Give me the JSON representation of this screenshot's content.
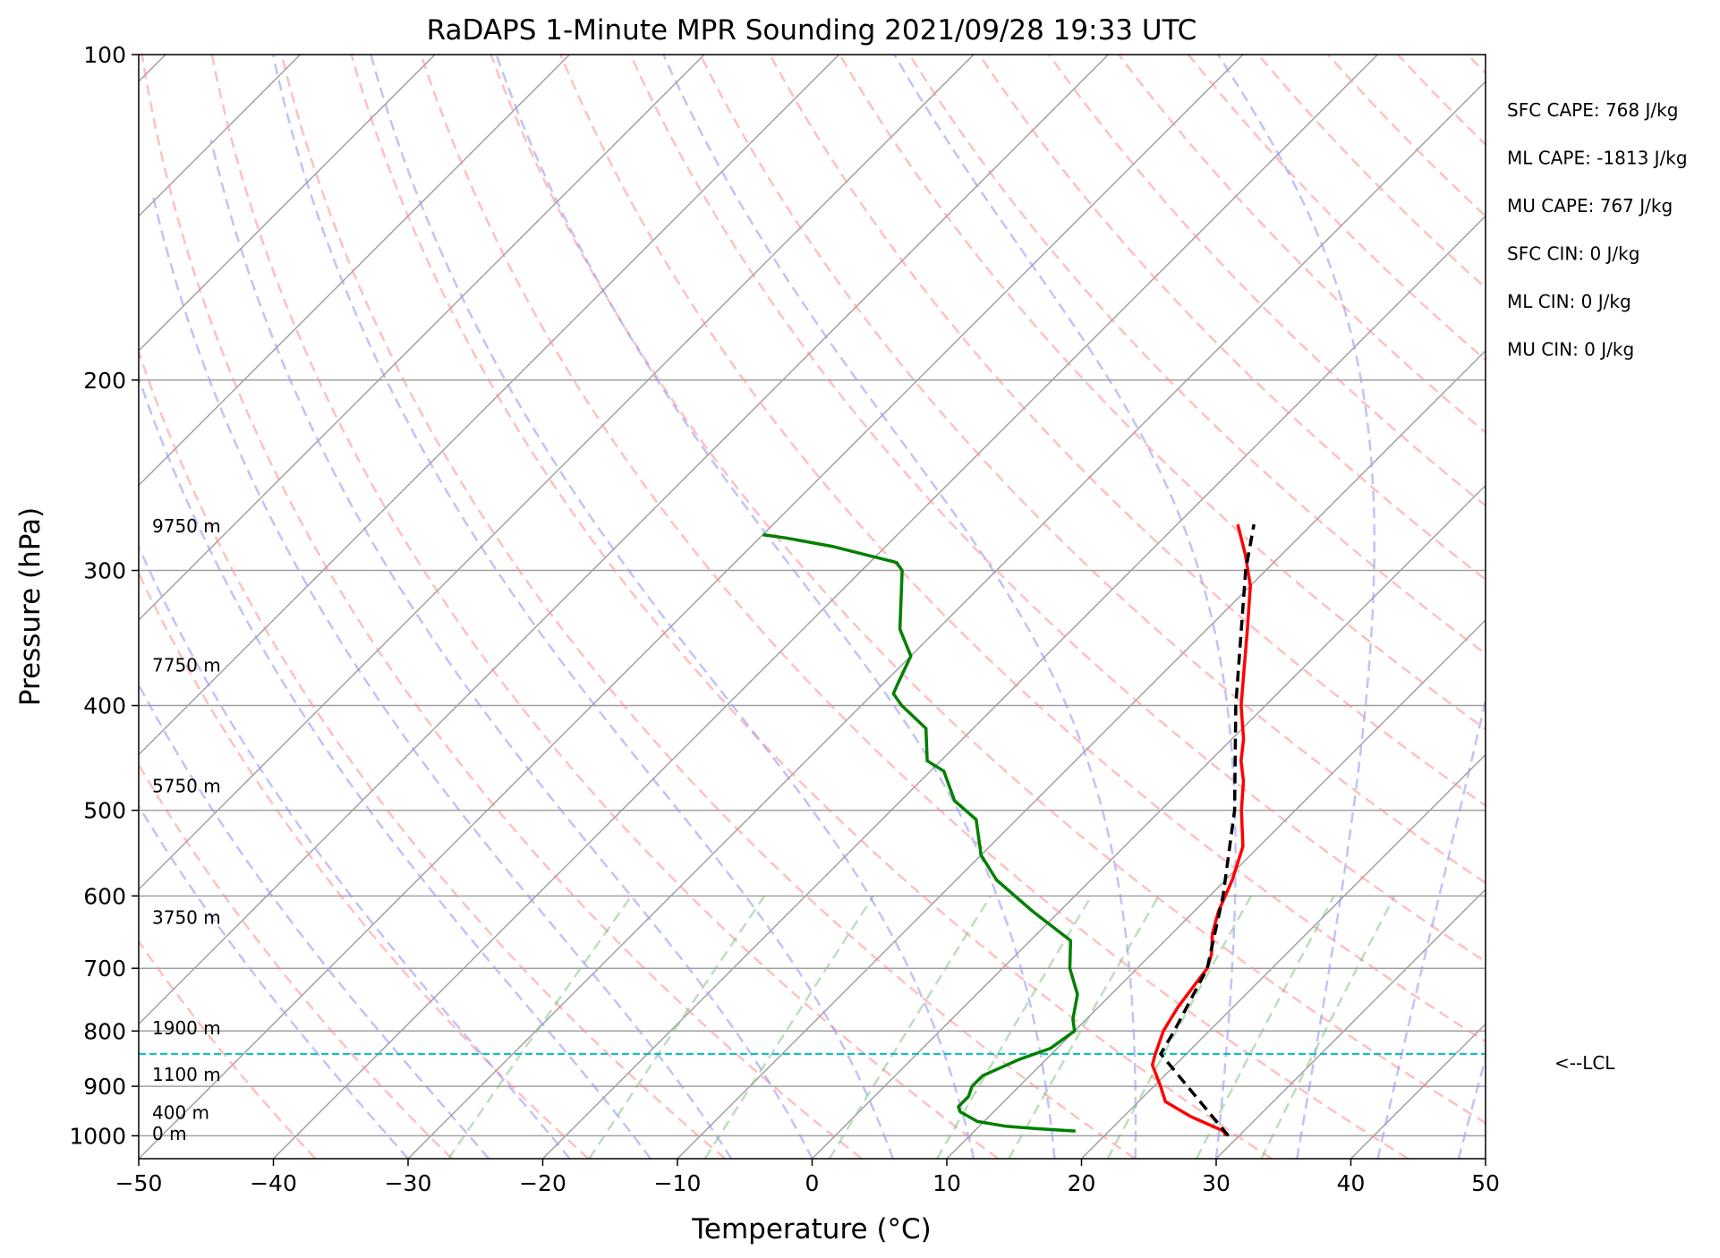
{
  "chart_data": {
    "type": "line",
    "title": "RaDAPS 1-Minute MPR Sounding 2021/09/28 19:33 UTC",
    "xlabel": "Temperature (°C)",
    "ylabel": "Pressure (hPa)",
    "xlim": [
      -50,
      50
    ],
    "ylim": [
      1050,
      100
    ],
    "y_scale": "log",
    "x_ticks": [
      "−50",
      "−40",
      "−30",
      "−20",
      "−10",
      "0",
      "10",
      "20",
      "30",
      "40",
      "50"
    ],
    "y_ticks": [
      {
        "value": 1000,
        "label": "1000"
      },
      {
        "value": 900,
        "label": "900"
      },
      {
        "value": 800,
        "label": "800"
      },
      {
        "value": 700,
        "label": "700"
      },
      {
        "value": 600,
        "label": "600"
      },
      {
        "value": 500,
        "label": "500"
      },
      {
        "value": 400,
        "label": "400"
      },
      {
        "value": 300,
        "label": "300"
      },
      {
        "value": 200,
        "label": "200"
      },
      {
        "value": 100,
        "label": "100"
      }
    ],
    "grid": true,
    "series": [
      {
        "kind": "temperature",
        "color": "#ff0000",
        "points": [
          [
            1000,
            29
          ],
          [
            990,
            28.5
          ],
          [
            960,
            25
          ],
          [
            930,
            22
          ],
          [
            900,
            20.5
          ],
          [
            860,
            18.3
          ],
          [
            840,
            17.7
          ],
          [
            800,
            16.6
          ],
          [
            760,
            15.9
          ],
          [
            700,
            15.2
          ],
          [
            680,
            14.5
          ],
          [
            650,
            13
          ],
          [
            620,
            11.8
          ],
          [
            580,
            10.5
          ],
          [
            540,
            8.8
          ],
          [
            500,
            6
          ],
          [
            470,
            4
          ],
          [
            450,
            2.3
          ],
          [
            430,
            0.9
          ],
          [
            400,
            -1.8
          ],
          [
            370,
            -4.3
          ],
          [
            340,
            -7
          ],
          [
            310,
            -10
          ],
          [
            290,
            -12.7
          ],
          [
            272,
            -15.5
          ]
        ]
      },
      {
        "kind": "dewpoint",
        "color": "#008000",
        "points": [
          [
            990,
            17.5
          ],
          [
            985,
            14.5
          ],
          [
            980,
            12
          ],
          [
            970,
            9.5
          ],
          [
            950,
            7.5
          ],
          [
            940,
            7
          ],
          [
            920,
            7
          ],
          [
            900,
            6.5
          ],
          [
            880,
            6.5
          ],
          [
            860,
            7.5
          ],
          [
            850,
            8
          ],
          [
            830,
            9.5
          ],
          [
            800,
            10
          ],
          [
            780,
            9
          ],
          [
            740,
            7.5
          ],
          [
            700,
            5
          ],
          [
            660,
            3
          ],
          [
            620,
            -2
          ],
          [
            580,
            -7
          ],
          [
            550,
            -10
          ],
          [
            510,
            -13
          ],
          [
            490,
            -16
          ],
          [
            460,
            -19
          ],
          [
            450,
            -21
          ],
          [
            420,
            -23.5
          ],
          [
            400,
            -27
          ],
          [
            390,
            -28.5
          ],
          [
            380,
            -29
          ],
          [
            360,
            -30
          ],
          [
            340,
            -32.8
          ],
          [
            300,
            -37
          ],
          [
            295,
            -38
          ],
          [
            285,
            -44
          ],
          [
            280,
            -48
          ],
          [
            278,
            -50
          ]
        ]
      },
      {
        "kind": "parcel",
        "color": "#000000",
        "points": [
          [
            1000,
            29.2
          ],
          [
            840,
            18.1
          ],
          [
            800,
            17.4
          ],
          [
            700,
            15.2
          ],
          [
            600,
            11
          ],
          [
            500,
            5.5
          ],
          [
            400,
            -2.2
          ],
          [
            300,
            -11.5
          ],
          [
            272,
            -14.3
          ]
        ]
      }
    ],
    "lcl_pressure": 840,
    "lcl_label": "<--LCL",
    "height_labels": [
      {
        "pressure": 995,
        "label": "0 m"
      },
      {
        "pressure": 952,
        "label": "400 m"
      },
      {
        "pressure": 878,
        "label": "1100 m"
      },
      {
        "pressure": 795,
        "label": "1900 m"
      },
      {
        "pressure": 628,
        "label": "3750 m"
      },
      {
        "pressure": 475,
        "label": "5750 m"
      },
      {
        "pressure": 367,
        "label": "7750 m"
      },
      {
        "pressure": 273,
        "label": "9750 m"
      }
    ],
    "indices": [
      "SFC CAPE: 768 J/kg",
      "ML CAPE: -1813 J/kg",
      "MU CAPE: 767 J/kg",
      "SFC CIN: 0 J/kg",
      "ML CIN: 0 J/kg",
      "MU CIN: 0 J/kg"
    ],
    "colors": {
      "isotherms": "#a0a0a0",
      "pressure_grid": "#a0a0a0",
      "dry_adiabats": "#ff8c8c",
      "moist_adiabats": "#9a9af5",
      "mixing_ratio": "#7ac07a",
      "lcl_line": "#00bfbf"
    }
  }
}
